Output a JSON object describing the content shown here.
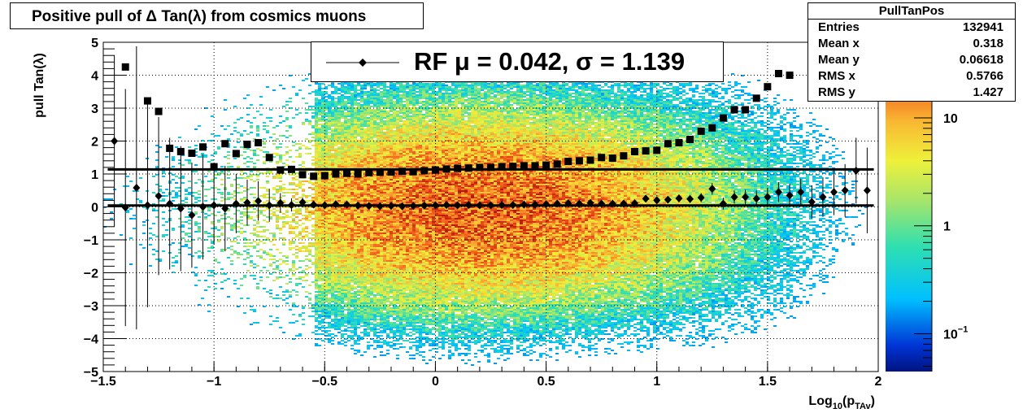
{
  "chart_data": {
    "type": "heatmap",
    "title": "Positive pull of Δ Tan(λ) from cosmics muons",
    "ylabel": "pull Tan(λ)",
    "xlabel": "Log",
    "xlabel_sub": "10",
    "xlabel_paren": "(p",
    "xlabel_sub2": "TAv",
    "xlabel_close": ")",
    "xlim": [
      -1.5,
      2
    ],
    "ylim": [
      -5,
      5
    ],
    "log_z": true,
    "grid": true,
    "x_tick_labels": [
      "−1.5",
      "−1",
      "−0.5",
      "0",
      "0.5",
      "1",
      "1.5",
      "2"
    ],
    "x_ticks": [
      -1.5,
      -1,
      -0.5,
      0,
      0.5,
      1,
      1.5,
      2
    ],
    "y_tick_labels": [
      "−5",
      "−4",
      "−3",
      "−2",
      "−1",
      "0",
      "1",
      "2",
      "3",
      "4",
      "5"
    ],
    "y_ticks": [
      -5,
      -4,
      -3,
      -2,
      -1,
      0,
      1,
      2,
      3,
      4,
      5
    ],
    "z_tick_labels": [
      "10",
      "1",
      "10"
    ],
    "z_tick_superscripts": [
      "",
      "",
      "−1"
    ],
    "z_ticks_log10": [
      1,
      0,
      -1
    ],
    "zlim_log10": [
      -1.35,
      1.7
    ],
    "fit": {
      "label": "RF μ =  0.042, σ =   1.139",
      "mean_line_y": 0.042,
      "sigma_line_y": 1.139
    },
    "mean_series": {
      "x": [
        -1.45,
        -1.4,
        -1.35,
        -1.3,
        -1.25,
        -1.2,
        -1.15,
        -1.1,
        -1.05,
        -1.0,
        -0.95,
        -0.9,
        -0.85,
        -0.8,
        -0.75,
        -0.7,
        -0.65,
        -0.6,
        -0.55,
        -0.5,
        -0.45,
        -0.4,
        -0.35,
        -0.3,
        -0.25,
        -0.2,
        -0.15,
        -0.1,
        -0.05,
        0.0,
        0.05,
        0.1,
        0.15,
        0.2,
        0.25,
        0.3,
        0.35,
        0.4,
        0.45,
        0.5,
        0.55,
        0.6,
        0.65,
        0.7,
        0.75,
        0.8,
        0.85,
        0.9,
        0.95,
        1.0,
        1.05,
        1.1,
        1.15,
        1.2,
        1.25,
        1.3,
        1.35,
        1.4,
        1.45,
        1.5,
        1.55,
        1.6,
        1.65,
        1.7,
        1.75,
        1.8,
        1.85,
        1.9,
        1.95
      ],
      "y": [
        2.0,
        -0.02,
        0.58,
        0.05,
        0.33,
        0.1,
        -0.05,
        -0.25,
        0.0,
        0.05,
        -0.05,
        0.1,
        0.13,
        0.18,
        0.05,
        0.12,
        0.06,
        0.14,
        0.07,
        0.05,
        0.08,
        0.07,
        0.04,
        0.03,
        0.02,
        0.03,
        0.02,
        0.03,
        0.04,
        0.05,
        0.06,
        0.05,
        0.06,
        0.05,
        0.05,
        0.06,
        0.06,
        0.07,
        0.07,
        0.08,
        0.1,
        0.11,
        0.1,
        0.12,
        0.1,
        0.1,
        0.1,
        0.11,
        0.25,
        0.2,
        0.22,
        0.26,
        0.24,
        0.28,
        0.55,
        0.1,
        0.3,
        0.3,
        0.25,
        0.3,
        0.45,
        0.35,
        0.45,
        0.15,
        0.3,
        0.45,
        0.5,
        1.1,
        0.5
      ],
      "err": [
        2.6,
        3.6,
        4.3,
        3.1,
        2.4,
        2.0,
        1.9,
        1.6,
        1.6,
        1.2,
        1.3,
        0.9,
        0.7,
        0.6,
        0.5,
        0.3,
        0.2,
        0.15,
        0.1,
        0.08,
        0.07,
        0.06,
        0.05,
        0.05,
        0.05,
        0.05,
        0.05,
        0.05,
        0.05,
        0.05,
        0.05,
        0.05,
        0.05,
        0.05,
        0.05,
        0.05,
        0.05,
        0.05,
        0.05,
        0.06,
        0.06,
        0.06,
        0.06,
        0.07,
        0.07,
        0.08,
        0.08,
        0.09,
        0.1,
        0.1,
        0.1,
        0.12,
        0.12,
        0.14,
        0.18,
        0.18,
        0.2,
        0.22,
        0.25,
        0.28,
        0.3,
        0.35,
        0.4,
        0.5,
        0.6,
        0.7,
        0.8,
        1.0,
        1.3
      ]
    },
    "sigma_series": {
      "x": [
        -1.4,
        -1.3,
        -1.25,
        -1.2,
        -1.15,
        -1.1,
        -1.05,
        -1.0,
        -0.95,
        -0.9,
        -0.85,
        -0.8,
        -0.75,
        -0.7,
        -0.65,
        -0.6,
        -0.55,
        -0.5,
        -0.45,
        -0.4,
        -0.35,
        -0.3,
        -0.25,
        -0.2,
        -0.15,
        -0.1,
        -0.05,
        0.0,
        0.05,
        0.1,
        0.15,
        0.2,
        0.25,
        0.3,
        0.35,
        0.4,
        0.45,
        0.5,
        0.55,
        0.6,
        0.65,
        0.7,
        0.75,
        0.8,
        0.85,
        0.9,
        0.95,
        1.0,
        1.05,
        1.1,
        1.15,
        1.2,
        1.25,
        1.3,
        1.35,
        1.4,
        1.45,
        1.5,
        1.55,
        1.6
      ],
      "y": [
        4.25,
        3.22,
        2.9,
        1.78,
        1.68,
        1.63,
        1.82,
        1.22,
        1.92,
        1.62,
        1.9,
        1.95,
        1.5,
        1.12,
        1.14,
        0.98,
        0.93,
        0.95,
        1.0,
        1.02,
        1.0,
        1.04,
        1.05,
        1.06,
        1.08,
        1.07,
        1.1,
        1.12,
        1.15,
        1.17,
        1.18,
        1.2,
        1.2,
        1.22,
        1.23,
        1.25,
        1.25,
        1.27,
        1.3,
        1.38,
        1.4,
        1.42,
        1.5,
        1.48,
        1.55,
        1.68,
        1.7,
        1.72,
        1.92,
        1.95,
        2.05,
        2.3,
        2.4,
        2.7,
        2.95,
        2.95,
        3.3,
        3.65,
        4.05,
        4.0
      ]
    }
  },
  "stats": {
    "title": "PullTanPos",
    "rows": [
      {
        "key": "Entries",
        "value": "132941"
      },
      {
        "key": "Mean x",
        "value": "0.318"
      },
      {
        "key": "Mean y",
        "value": "0.06618"
      },
      {
        "key": "RMS x",
        "value": "0.5766"
      },
      {
        "key": "RMS y",
        "value": "1.427"
      }
    ]
  }
}
